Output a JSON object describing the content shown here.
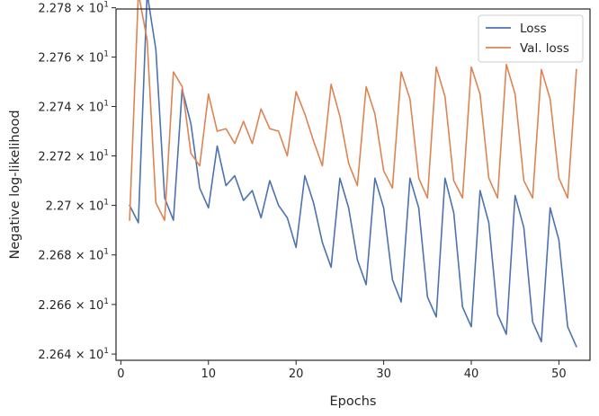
{
  "chart_data": {
    "type": "line",
    "xlabel": "Epochs",
    "ylabel": "Negative log-likelihood",
    "xlim": [
      -0.55,
      53.55
    ],
    "ylim": [
      22.6375,
      22.7795
    ],
    "xticks": [
      0,
      10,
      20,
      30,
      40,
      50
    ],
    "xtick_labels": [
      "0",
      "10",
      "20",
      "30",
      "40",
      "50"
    ],
    "yticks": [
      22.64,
      22.66,
      22.68,
      22.7,
      22.72,
      22.74,
      22.76,
      22.78
    ],
    "ytick_labels": [
      {
        "mantissa": "2.264",
        "exp": "1"
      },
      {
        "mantissa": "2.266",
        "exp": "1"
      },
      {
        "mantissa": "2.268",
        "exp": "1"
      },
      {
        "mantissa": "2.27",
        "exp": "1"
      },
      {
        "mantissa": "2.272",
        "exp": "1"
      },
      {
        "mantissa": "2.274",
        "exp": "1"
      },
      {
        "mantissa": "2.276",
        "exp": "1"
      },
      {
        "mantissa": "2.278",
        "exp": "1"
      }
    ],
    "y_scale": "log",
    "grid": false,
    "legend_position": "upper-right",
    "series": [
      {
        "name": "Loss",
        "color": "#4c72b0",
        "x": [
          1,
          2,
          3,
          4,
          5,
          6,
          7,
          8,
          9,
          10,
          11,
          12,
          13,
          14,
          15,
          16,
          17,
          18,
          19,
          20,
          21,
          22,
          23,
          24,
          25,
          26,
          27,
          28,
          29,
          30,
          31,
          32,
          33,
          34,
          35,
          36,
          37,
          38,
          39,
          40,
          41,
          42,
          43,
          44,
          45,
          46,
          47,
          48,
          49,
          50,
          51,
          52
        ],
        "values": [
          22.7,
          22.693,
          22.786,
          22.763,
          22.703,
          22.694,
          22.747,
          22.733,
          22.707,
          22.699,
          22.724,
          22.708,
          22.712,
          22.702,
          22.706,
          22.695,
          22.71,
          22.7,
          22.695,
          22.683,
          22.712,
          22.701,
          22.685,
          22.675,
          22.711,
          22.699,
          22.678,
          22.668,
          22.711,
          22.699,
          22.67,
          22.661,
          22.711,
          22.699,
          22.663,
          22.655,
          22.711,
          22.697,
          22.659,
          22.651,
          22.706,
          22.693,
          22.656,
          22.648,
          22.704,
          22.691,
          22.653,
          22.645,
          22.699,
          22.686,
          22.651,
          22.643
        ]
      },
      {
        "name": "Val. loss",
        "color": "#dd8452",
        "x": [
          1,
          2,
          3,
          4,
          5,
          6,
          7,
          8,
          9,
          10,
          11,
          12,
          13,
          14,
          15,
          16,
          17,
          18,
          19,
          20,
          21,
          22,
          23,
          24,
          25,
          26,
          27,
          28,
          29,
          30,
          31,
          32,
          33,
          34,
          35,
          36,
          37,
          38,
          39,
          40,
          41,
          42,
          43,
          44,
          45,
          46,
          47,
          48,
          49,
          50,
          51,
          52
        ],
        "values": [
          22.694,
          22.786,
          22.767,
          22.701,
          22.694,
          22.754,
          22.748,
          22.721,
          22.716,
          22.745,
          22.73,
          22.731,
          22.725,
          22.734,
          22.725,
          22.739,
          22.731,
          22.73,
          22.72,
          22.746,
          22.737,
          22.726,
          22.716,
          22.749,
          22.736,
          22.717,
          22.708,
          22.748,
          22.737,
          22.714,
          22.707,
          22.754,
          22.743,
          22.711,
          22.703,
          22.756,
          22.744,
          22.71,
          22.703,
          22.756,
          22.745,
          22.711,
          22.703,
          22.757,
          22.745,
          22.71,
          22.703,
          22.755,
          22.743,
          22.711,
          22.703,
          22.755
        ]
      }
    ]
  }
}
